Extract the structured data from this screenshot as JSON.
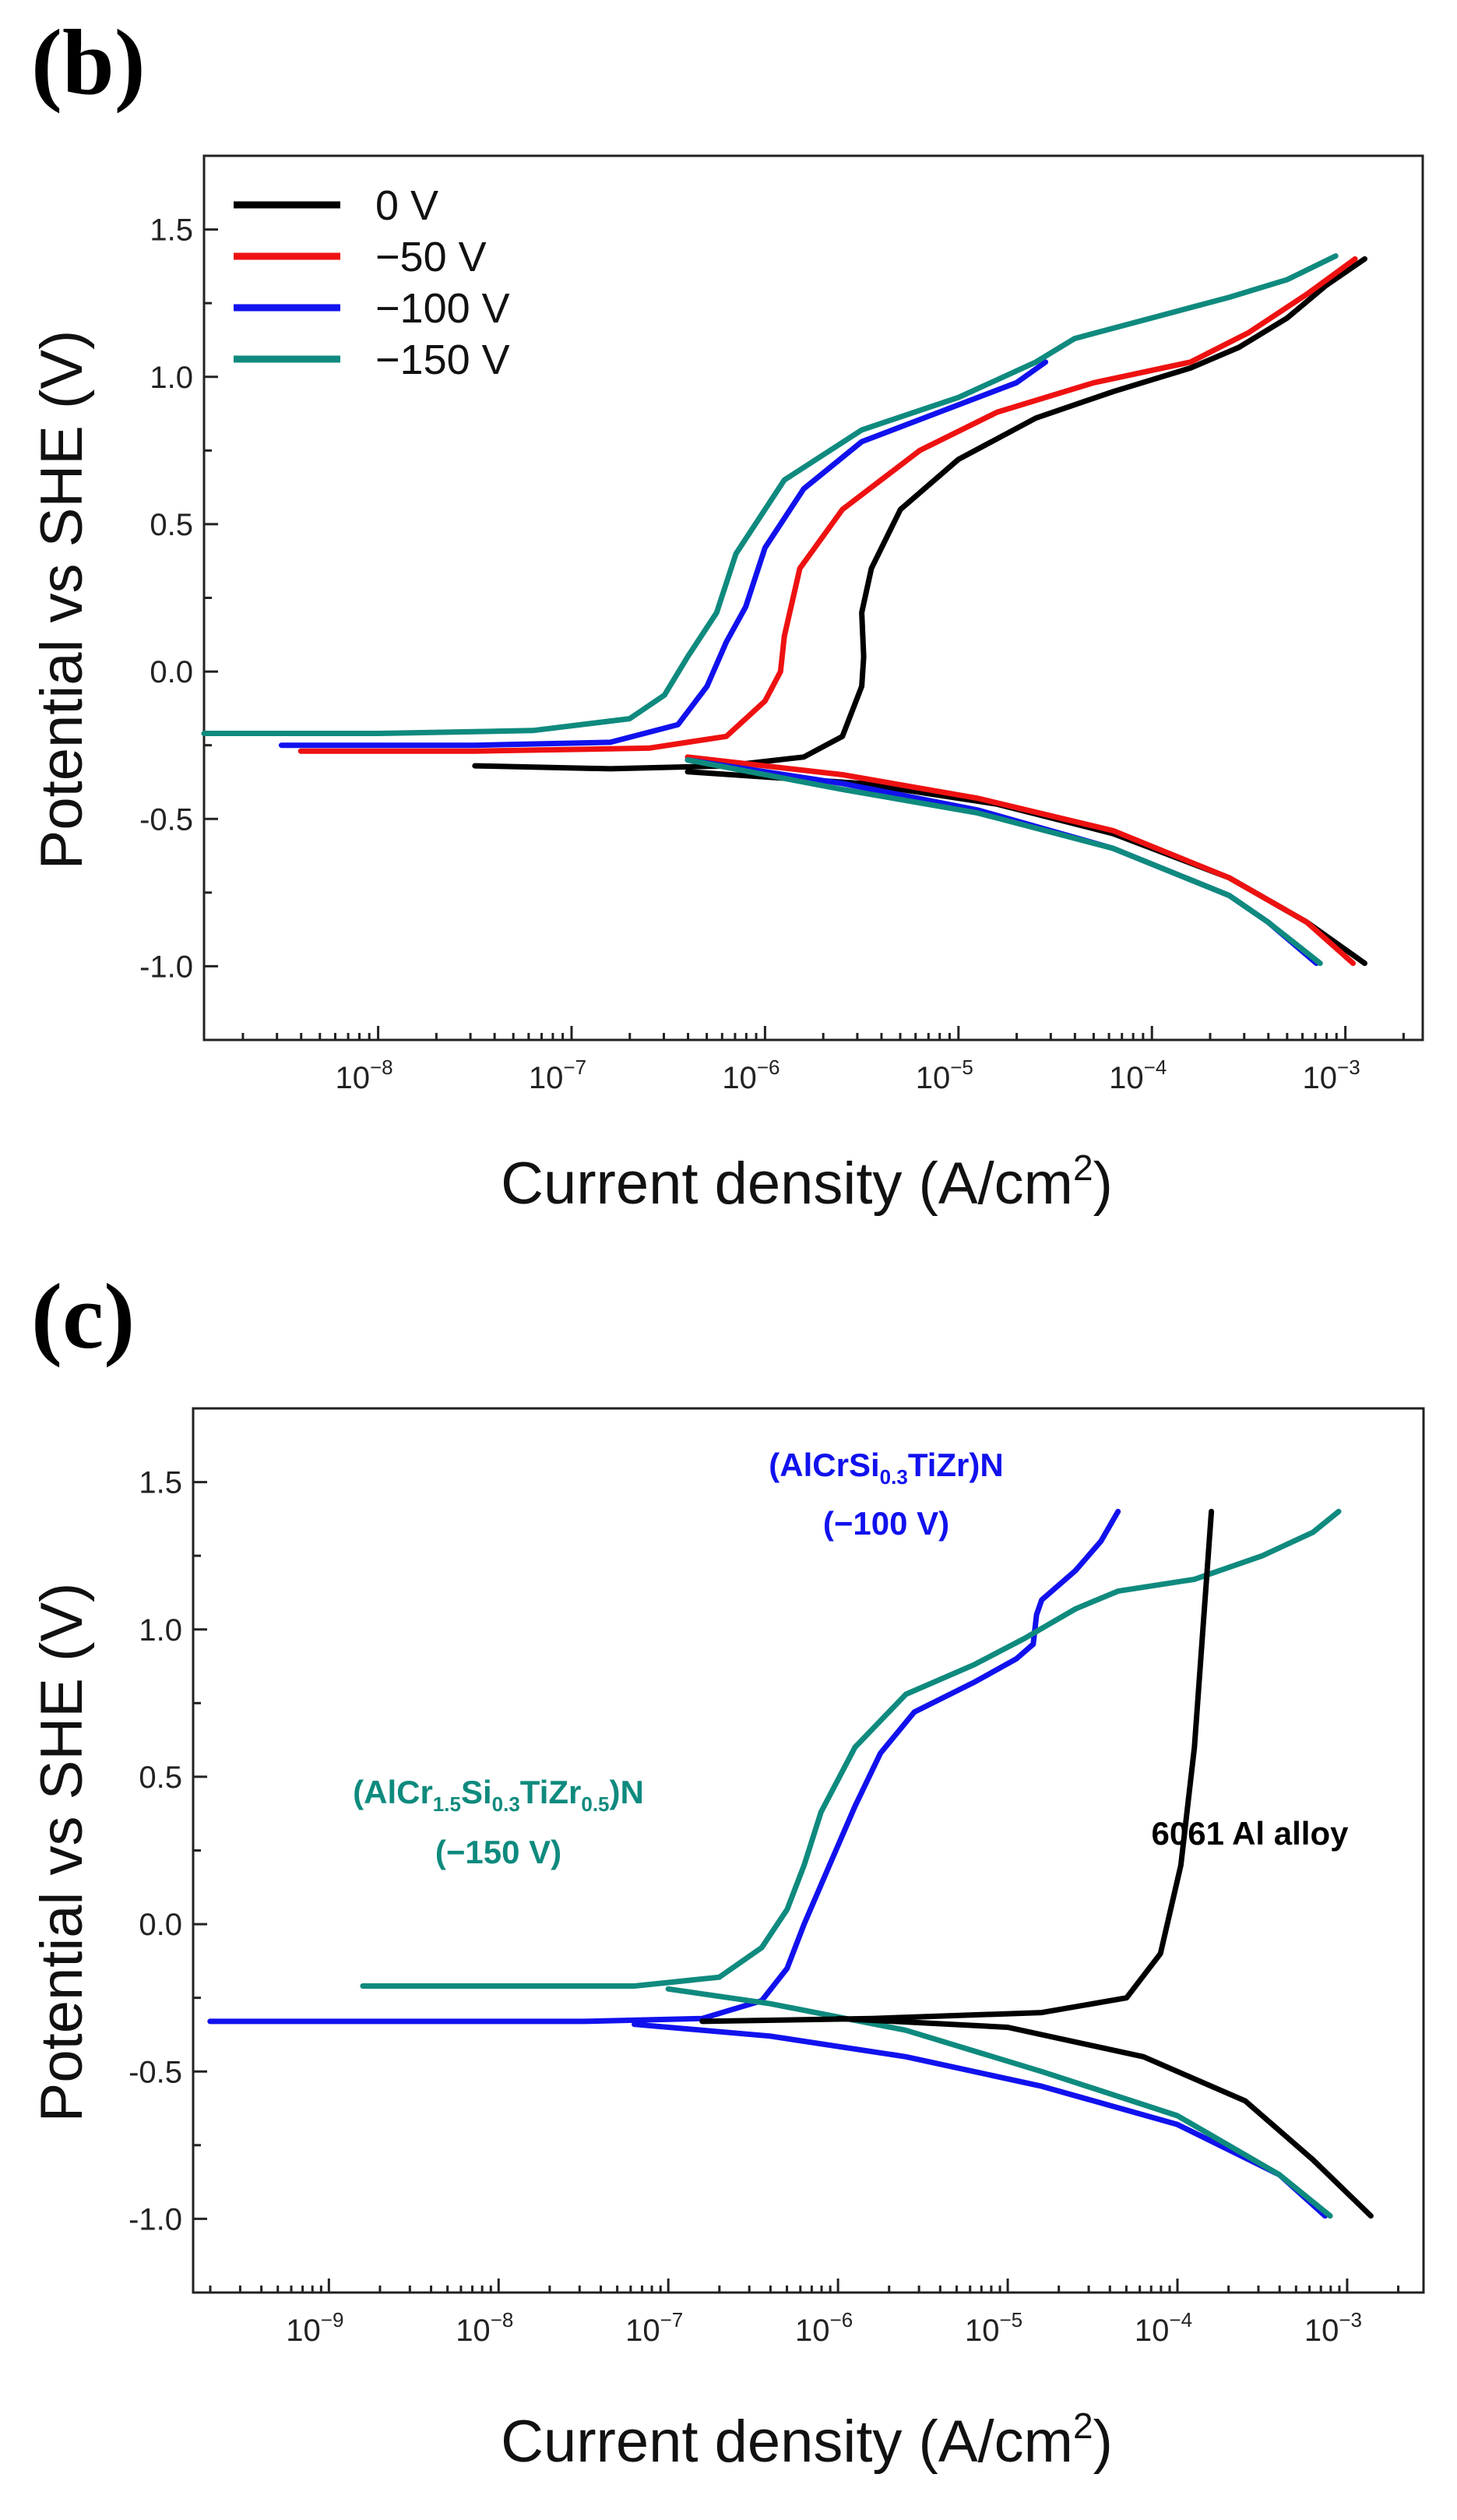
{
  "chart_data": [
    {
      "panel_label": "(b)",
      "type": "line",
      "xscale": "log",
      "xlabel_main": "Current density (A/cm",
      "xlabel_sup": "2",
      "xlabel_end": ")",
      "ylabel": "Potential vs SHE (V)",
      "xlim_log10": [
        -8.9,
        -2.6
      ],
      "ylim": [
        -1.25,
        1.75
      ],
      "x_ticks": [
        {
          "base": "10",
          "exp": "−8",
          "log": -8
        },
        {
          "base": "10",
          "exp": "−7",
          "log": -7
        },
        {
          "base": "10",
          "exp": "−6",
          "log": -6
        },
        {
          "base": "10",
          "exp": "−5",
          "log": -5
        },
        {
          "base": "10",
          "exp": "−4",
          "log": -4
        },
        {
          "base": "10",
          "exp": "−3",
          "log": -3
        }
      ],
      "y_ticks": [
        {
          "label": "1.5",
          "value": 1.5
        },
        {
          "label": "1.0",
          "value": 1.0
        },
        {
          "label": "0.5",
          "value": 0.5
        },
        {
          "label": "0.0",
          "value": 0.0
        },
        {
          "label": "-0.5",
          "value": -0.5
        },
        {
          "label": "-1.0",
          "value": -1.0
        }
      ],
      "legend_position": "top-left",
      "series": [
        {
          "name": "0 V",
          "color": "#000000",
          "anodic": [
            [
              -7.5,
              -0.32
            ],
            [
              -6.8,
              -0.33
            ],
            [
              -6.2,
              -0.32
            ],
            [
              -5.8,
              -0.29
            ],
            [
              -5.6,
              -0.22
            ],
            [
              -5.5,
              -0.05
            ],
            [
              -5.49,
              0.05
            ],
            [
              -5.5,
              0.2
            ],
            [
              -5.45,
              0.35
            ],
            [
              -5.3,
              0.55
            ],
            [
              -5.0,
              0.72
            ],
            [
              -4.6,
              0.86
            ],
            [
              -4.2,
              0.95
            ],
            [
              -3.8,
              1.03
            ],
            [
              -3.55,
              1.1
            ],
            [
              -3.3,
              1.2
            ],
            [
              -3.1,
              1.31
            ],
            [
              -2.9,
              1.4
            ]
          ],
          "cathodic": [
            [
              -6.4,
              -0.34
            ],
            [
              -5.5,
              -0.38
            ],
            [
              -4.8,
              -0.45
            ],
            [
              -4.2,
              -0.55
            ],
            [
              -3.6,
              -0.7
            ],
            [
              -3.2,
              -0.85
            ],
            [
              -2.9,
              -0.99
            ]
          ]
        },
        {
          "name": "−50 V",
          "color": "#ee1111",
          "anodic": [
            [
              -8.4,
              -0.27
            ],
            [
              -7.5,
              -0.27
            ],
            [
              -6.6,
              -0.26
            ],
            [
              -6.2,
              -0.22
            ],
            [
              -6.0,
              -0.1
            ],
            [
              -5.92,
              0.0
            ],
            [
              -5.9,
              0.12
            ],
            [
              -5.82,
              0.35
            ],
            [
              -5.6,
              0.55
            ],
            [
              -5.2,
              0.75
            ],
            [
              -4.8,
              0.88
            ],
            [
              -4.3,
              0.98
            ],
            [
              -3.8,
              1.05
            ],
            [
              -3.5,
              1.15
            ],
            [
              -3.2,
              1.28
            ],
            [
              -2.95,
              1.4
            ]
          ],
          "cathodic": [
            [
              -6.4,
              -0.29
            ],
            [
              -5.6,
              -0.35
            ],
            [
              -4.9,
              -0.43
            ],
            [
              -4.2,
              -0.54
            ],
            [
              -3.6,
              -0.7
            ],
            [
              -3.2,
              -0.85
            ],
            [
              -2.96,
              -0.99
            ]
          ]
        },
        {
          "name": "−100 V",
          "color": "#1111ee",
          "anodic": [
            [
              -8.5,
              -0.25
            ],
            [
              -7.5,
              -0.25
            ],
            [
              -6.8,
              -0.24
            ],
            [
              -6.45,
              -0.18
            ],
            [
              -6.3,
              -0.05
            ],
            [
              -6.2,
              0.1
            ],
            [
              -6.1,
              0.22
            ],
            [
              -6.0,
              0.42
            ],
            [
              -5.8,
              0.62
            ],
            [
              -5.5,
              0.78
            ],
            [
              -5.1,
              0.88
            ],
            [
              -4.7,
              0.98
            ],
            [
              -4.55,
              1.05
            ]
          ],
          "cathodic": [
            [
              -6.4,
              -0.3
            ],
            [
              -5.6,
              -0.38
            ],
            [
              -4.9,
              -0.47
            ],
            [
              -4.2,
              -0.6
            ],
            [
              -3.6,
              -0.76
            ],
            [
              -3.4,
              -0.85
            ],
            [
              -3.15,
              -0.99
            ]
          ]
        },
        {
          "name": "−150 V",
          "color": "#0f8a7e",
          "anodic": [
            [
              -8.9,
              -0.21
            ],
            [
              -8.0,
              -0.21
            ],
            [
              -7.2,
              -0.2
            ],
            [
              -6.7,
              -0.16
            ],
            [
              -6.52,
              -0.08
            ],
            [
              -6.4,
              0.05
            ],
            [
              -6.25,
              0.2
            ],
            [
              -6.15,
              0.4
            ],
            [
              -5.9,
              0.65
            ],
            [
              -5.5,
              0.82
            ],
            [
              -5.0,
              0.93
            ],
            [
              -4.6,
              1.05
            ],
            [
              -4.4,
              1.13
            ],
            [
              -4.0,
              1.2
            ],
            [
              -3.6,
              1.27
            ],
            [
              -3.3,
              1.33
            ],
            [
              -3.05,
              1.41
            ]
          ],
          "cathodic": [
            [
              -6.4,
              -0.3
            ],
            [
              -5.6,
              -0.4
            ],
            [
              -4.9,
              -0.48
            ],
            [
              -4.2,
              -0.6
            ],
            [
              -3.6,
              -0.76
            ],
            [
              -3.4,
              -0.85
            ],
            [
              -3.13,
              -0.99
            ]
          ]
        }
      ]
    },
    {
      "panel_label": "(c)",
      "type": "line",
      "xscale": "log",
      "xlabel_main": "Current density (A/cm",
      "xlabel_sup": "2",
      "xlabel_end": ")",
      "ylabel": "Potential vs SHE (V)",
      "xlim_log10": [
        -9.8,
        -2.55
      ],
      "ylim": [
        -1.25,
        1.75
      ],
      "x_ticks": [
        {
          "base": "10",
          "exp": "−9",
          "log": -9
        },
        {
          "base": "10",
          "exp": "−8",
          "log": -8
        },
        {
          "base": "10",
          "exp": "−7",
          "log": -7
        },
        {
          "base": "10",
          "exp": "−6",
          "log": -6
        },
        {
          "base": "10",
          "exp": "−5",
          "log": -5
        },
        {
          "base": "10",
          "exp": "−4",
          "log": -4
        },
        {
          "base": "10",
          "exp": "−3",
          "log": -3
        }
      ],
      "y_ticks": [
        {
          "label": "1.5",
          "value": 1.5
        },
        {
          "label": "1.0",
          "value": 1.0
        },
        {
          "label": "0.5",
          "value": 0.5
        },
        {
          "label": "0.0",
          "value": 0.0
        },
        {
          "label": "-0.5",
          "value": -0.5
        },
        {
          "label": "-1.0",
          "value": -1.0
        }
      ],
      "annotations": {
        "blue_line1_pre": "(AlCrSi",
        "blue_line1_sub": "0.3",
        "blue_line1_post": "TiZr)N",
        "blue_line2": "(−100 V)",
        "teal_line1_a": "(AlCr",
        "teal_line1_sub1": "1.5",
        "teal_line1_b": "Si",
        "teal_line1_sub2": "0.3",
        "teal_line1_c": "TiZr",
        "teal_line1_sub3": "0.5",
        "teal_line1_d": ")N",
        "teal_line2": "(−150 V)",
        "black_label": "6061 Al alloy"
      },
      "series": [
        {
          "name": "(AlCrSi0.3TiZr)N (−100 V)",
          "color": "#1111ee",
          "anodic": [
            [
              -9.7,
              -0.33
            ],
            [
              -8.5,
              -0.33
            ],
            [
              -7.5,
              -0.33
            ],
            [
              -6.8,
              -0.32
            ],
            [
              -6.45,
              -0.26
            ],
            [
              -6.3,
              -0.15
            ],
            [
              -6.2,
              0.0
            ],
            [
              -6.05,
              0.2
            ],
            [
              -5.9,
              0.4
            ],
            [
              -5.75,
              0.58
            ],
            [
              -5.55,
              0.72
            ],
            [
              -5.2,
              0.82
            ],
            [
              -4.95,
              0.9
            ],
            [
              -4.85,
              0.95
            ],
            [
              -4.83,
              1.05
            ],
            [
              -4.8,
              1.1
            ],
            [
              -4.6,
              1.2
            ],
            [
              -4.45,
              1.3
            ],
            [
              -4.35,
              1.4
            ]
          ],
          "cathodic": [
            [
              -7.2,
              -0.34
            ],
            [
              -6.4,
              -0.38
            ],
            [
              -5.6,
              -0.45
            ],
            [
              -4.8,
              -0.55
            ],
            [
              -4.0,
              -0.68
            ],
            [
              -3.4,
              -0.85
            ],
            [
              -3.13,
              -0.99
            ]
          ]
        },
        {
          "name": "(AlCr1.5Si0.3TiZr0.5)N (−150 V)",
          "color": "#0f8a7e",
          "anodic": [
            [
              -8.8,
              -0.21
            ],
            [
              -8.0,
              -0.21
            ],
            [
              -7.2,
              -0.21
            ],
            [
              -6.7,
              -0.18
            ],
            [
              -6.45,
              -0.08
            ],
            [
              -6.3,
              0.05
            ],
            [
              -6.2,
              0.2
            ],
            [
              -6.1,
              0.38
            ],
            [
              -5.9,
              0.6
            ],
            [
              -5.6,
              0.78
            ],
            [
              -5.2,
              0.88
            ],
            [
              -4.9,
              0.97
            ],
            [
              -4.6,
              1.07
            ],
            [
              -4.35,
              1.13
            ],
            [
              -3.9,
              1.17
            ],
            [
              -3.5,
              1.25
            ],
            [
              -3.2,
              1.33
            ],
            [
              -3.05,
              1.4
            ]
          ],
          "cathodic": [
            [
              -7.0,
              -0.22
            ],
            [
              -6.4,
              -0.27
            ],
            [
              -5.6,
              -0.36
            ],
            [
              -4.8,
              -0.5
            ],
            [
              -4.0,
              -0.65
            ],
            [
              -3.4,
              -0.85
            ],
            [
              -3.1,
              -0.99
            ]
          ]
        },
        {
          "name": "6061 Al alloy",
          "color": "#000000",
          "anodic": [
            [
              -6.8,
              -0.33
            ],
            [
              -5.8,
              -0.32
            ],
            [
              -4.8,
              -0.3
            ],
            [
              -4.3,
              -0.25
            ],
            [
              -4.1,
              -0.1
            ],
            [
              -3.98,
              0.2
            ],
            [
              -3.9,
              0.6
            ],
            [
              -3.85,
              1.0
            ],
            [
              -3.8,
              1.4
            ]
          ],
          "cathodic": [
            [
              -6.0,
              -0.32
            ],
            [
              -5.0,
              -0.35
            ],
            [
              -4.2,
              -0.45
            ],
            [
              -3.6,
              -0.6
            ],
            [
              -3.2,
              -0.8
            ],
            [
              -2.86,
              -0.99
            ]
          ]
        }
      ]
    }
  ]
}
